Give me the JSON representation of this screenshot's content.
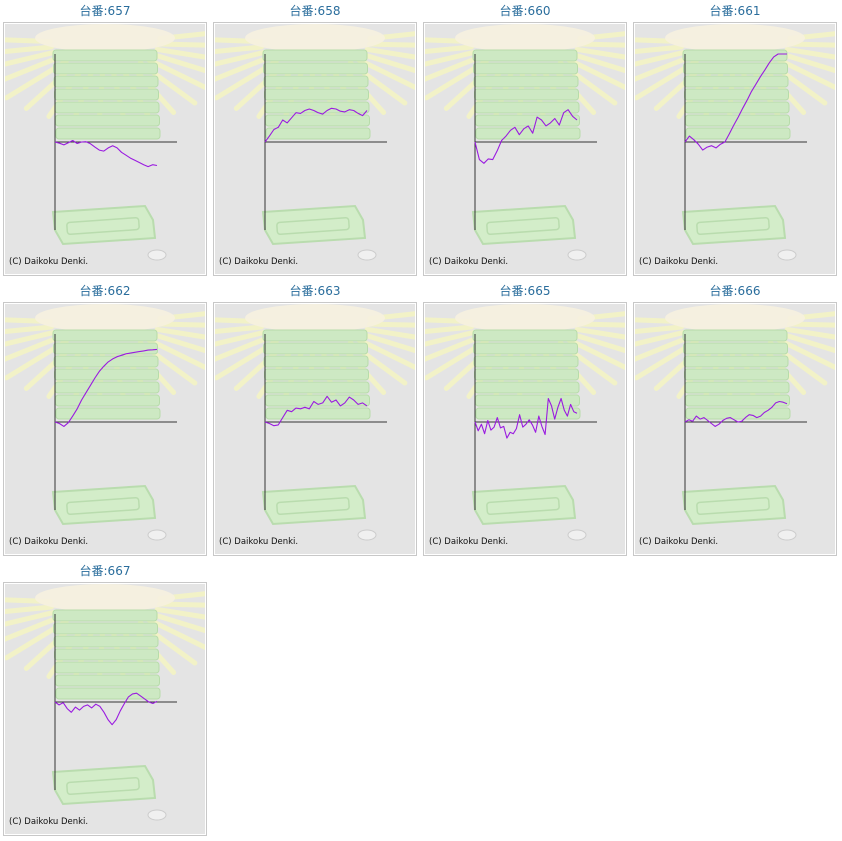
{
  "colors": {
    "title": "#2a6d9c",
    "line": "#9a1be0",
    "axis": "#333333",
    "panel": "#e4e4e4"
  },
  "copyright": "(C) Daikoku Denki.",
  "chart_data": [
    {
      "type": "line",
      "title": "台番:657",
      "series": [
        {
          "values": [
            0,
            -8,
            -20,
            -5,
            10,
            -10,
            0,
            2,
            -12,
            -35,
            -55,
            -62,
            -40,
            -25,
            -40,
            -70,
            -90,
            -110,
            -125,
            -140,
            -155,
            -168,
            -155,
            -160
          ]
        }
      ]
    },
    {
      "type": "line",
      "title": "台番:658",
      "series": [
        {
          "values": [
            0,
            40,
            85,
            100,
            150,
            130,
            165,
            200,
            195,
            215,
            225,
            215,
            200,
            190,
            215,
            230,
            225,
            210,
            205,
            220,
            215,
            195,
            180,
            215
          ]
        }
      ]
    },
    {
      "type": "line",
      "title": "台番:660",
      "series": [
        {
          "values": [
            0,
            -120,
            -145,
            -115,
            -120,
            -60,
            10,
            40,
            80,
            100,
            50,
            90,
            110,
            60,
            170,
            150,
            110,
            130,
            160,
            115,
            200,
            220,
            175,
            150
          ]
        }
      ]
    },
    {
      "type": "line",
      "title": "台番:661",
      "series": [
        {
          "values": [
            0,
            40,
            15,
            -15,
            -55,
            -35,
            -25,
            -40,
            -15,
            0,
            55,
            115,
            170,
            230,
            285,
            345,
            395,
            445,
            490,
            540,
            580,
            615,
            640,
            640
          ]
        }
      ]
    },
    {
      "type": "line",
      "title": "台番:662",
      "series": [
        {
          "values": [
            0,
            -10,
            -30,
            -5,
            40,
            90,
            150,
            200,
            250,
            300,
            345,
            380,
            410,
            430,
            445,
            455,
            465,
            470,
            475,
            480,
            485,
            490,
            492,
            495
          ]
        }
      ]
    },
    {
      "type": "line",
      "title": "台番:663",
      "series": [
        {
          "values": [
            0,
            -10,
            -25,
            -20,
            30,
            80,
            70,
            95,
            90,
            100,
            90,
            140,
            120,
            130,
            175,
            135,
            150,
            110,
            130,
            170,
            150,
            120,
            130,
            110
          ]
        }
      ]
    },
    {
      "type": "line",
      "title": "台番:665",
      "series": [
        {
          "values": [
            0,
            -60,
            -15,
            -80,
            10,
            -55,
            -35,
            30,
            -40,
            -30,
            -110,
            -70,
            -80,
            -45,
            50,
            -35,
            -15,
            15,
            -20,
            -70,
            40,
            -30,
            -85,
            160,
            110,
            20,
            100,
            160,
            80,
            40,
            120,
            70,
            60
          ]
        }
      ]
    },
    {
      "type": "line",
      "title": "台番:666",
      "series": [
        {
          "values": [
            0,
            15,
            5,
            40,
            20,
            30,
            10,
            -10,
            -30,
            -15,
            10,
            25,
            30,
            15,
            0,
            5,
            30,
            50,
            45,
            30,
            40,
            65,
            80,
            100,
            130,
            140,
            135,
            125
          ]
        }
      ]
    },
    {
      "type": "line",
      "title": "台番:667",
      "series": [
        {
          "values": [
            0,
            -20,
            -5,
            -45,
            -70,
            -35,
            -55,
            -30,
            -20,
            -40,
            -15,
            -30,
            -70,
            -120,
            -155,
            -120,
            -60,
            -10,
            35,
            55,
            60,
            40,
            20,
            0,
            -10,
            5
          ]
        }
      ]
    }
  ]
}
